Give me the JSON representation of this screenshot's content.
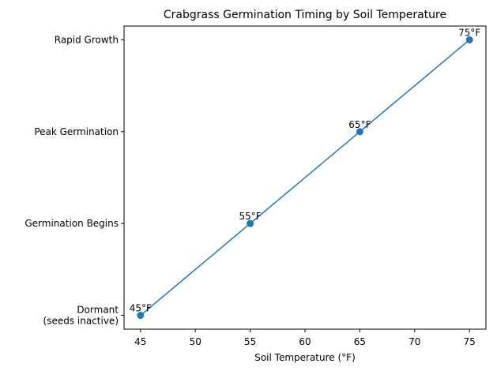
{
  "chart_data": {
    "type": "line",
    "title": "Crabgrass Germination Timing by Soil Temperature",
    "xlabel": "Soil Temperature (°F)",
    "ylabel": "",
    "xlim": [
      43.5,
      76.5
    ],
    "x_ticks": [
      45,
      50,
      55,
      60,
      65,
      70,
      75
    ],
    "y_categories": [
      "Dormant\n(seeds inactive)",
      "Germination Begins",
      "Peak Germination",
      "Rapid Growth"
    ],
    "series": [
      {
        "name": "Germination stage",
        "color": "#1f77b4",
        "marker": "circle",
        "x": [
          45,
          55,
          65,
          75
        ],
        "y": [
          0,
          1,
          2,
          3
        ],
        "labels": [
          "45°F",
          "55°F",
          "65°F",
          "75°F"
        ]
      }
    ],
    "grid": false,
    "legend": "none"
  }
}
